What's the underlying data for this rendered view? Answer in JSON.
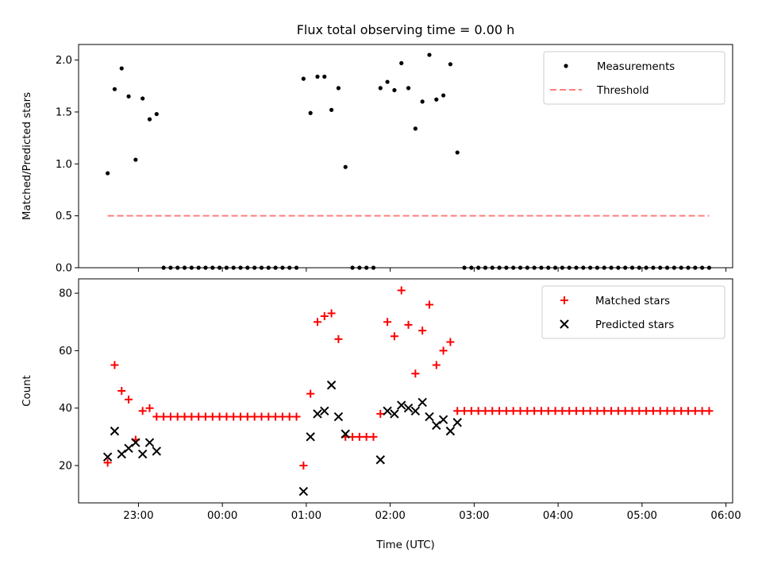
{
  "chart_data": {
    "title": "Flux total observing time = 0.00 h",
    "xlabel": "Time (UTC)",
    "x_unit": "UTC time (day 1 = night of observation, day 2 = after midnight)",
    "x_ticks": [
      "23:00",
      "00:00",
      "01:00",
      "02:00",
      "03:00",
      "04:00",
      "05:00",
      "06:00"
    ],
    "panels": [
      {
        "type": "scatter",
        "ylabel": "Matched/Predicted stars",
        "ylim": [
          0,
          2.15
        ],
        "yticks": [
          "0.0",
          "0.5",
          "1.0",
          "1.5",
          "2.0"
        ],
        "grid": false,
        "legend_position": "top-right",
        "series": [
          {
            "name": "Measurements",
            "marker": "dot",
            "color": "#000000",
            "x": [
              "22:38",
              "22:43",
              "22:48",
              "22:53",
              "22:58",
              "23:03",
              "23:08",
              "23:13",
              "23:18",
              "23:23",
              "23:28",
              "23:33",
              "23:38",
              "23:43",
              "23:48",
              "23:53",
              "23:58",
              "00:03",
              "00:08",
              "00:13",
              "00:18",
              "00:23",
              "00:28",
              "00:33",
              "00:38",
              "00:43",
              "00:48",
              "00:53",
              "00:58",
              "01:03",
              "01:08",
              "01:13",
              "01:18",
              "01:23",
              "01:28",
              "01:33",
              "01:38",
              "01:43",
              "01:48",
              "01:53",
              "01:58",
              "02:03",
              "02:08",
              "02:13",
              "02:18",
              "02:23",
              "02:28",
              "02:33",
              "02:38",
              "02:43",
              "02:48",
              "02:53",
              "02:58",
              "03:03",
              "03:08",
              "03:13",
              "03:18",
              "03:23",
              "03:28",
              "03:33",
              "03:38",
              "03:43",
              "03:48",
              "03:53",
              "03:58",
              "04:03",
              "04:08",
              "04:13",
              "04:18",
              "04:23",
              "04:28",
              "04:33",
              "04:38",
              "04:43",
              "04:48",
              "04:53",
              "04:58",
              "05:03",
              "05:08",
              "05:13",
              "05:18",
              "05:23",
              "05:28",
              "05:33",
              "05:38",
              "05:43",
              "05:48"
            ],
            "y": [
              0.91,
              1.72,
              1.92,
              1.65,
              1.04,
              1.63,
              1.43,
              1.48,
              0,
              0,
              0,
              0,
              0,
              0,
              0,
              0,
              0,
              0,
              0,
              0,
              0,
              0,
              0,
              0,
              0,
              0,
              0,
              0,
              1.82,
              1.49,
              1.84,
              1.84,
              1.52,
              1.73,
              0.97,
              0,
              0,
              0,
              0,
              1.73,
              1.79,
              1.71,
              1.97,
              1.73,
              1.34,
              1.6,
              2.05,
              1.62,
              1.66,
              1.96,
              1.11,
              0,
              0,
              0,
              0,
              0,
              0,
              0,
              0,
              0,
              0,
              0,
              0,
              0,
              0,
              0,
              0,
              0,
              0,
              0,
              0,
              0,
              0,
              0,
              0,
              0,
              0,
              0,
              0,
              0,
              0,
              0,
              0,
              0,
              0,
              0,
              0
            ]
          },
          {
            "name": "Threshold",
            "marker": "dashed-line",
            "color": "#ff7f7f",
            "x": [
              "22:38",
              "05:48"
            ],
            "y": [
              0.5,
              0.5
            ]
          }
        ]
      },
      {
        "type": "scatter",
        "ylabel": "Count",
        "ylim": [
          7,
          85
        ],
        "yticks": [
          "20",
          "40",
          "60",
          "80"
        ],
        "grid": false,
        "legend_position": "top-right",
        "series": [
          {
            "name": "Matched stars",
            "marker": "plus",
            "color": "#ff0000",
            "x": [
              "22:38",
              "22:43",
              "22:48",
              "22:53",
              "22:58",
              "23:03",
              "23:08",
              "23:13",
              "23:18",
              "23:23",
              "23:28",
              "23:33",
              "23:38",
              "23:43",
              "23:48",
              "23:53",
              "23:58",
              "00:03",
              "00:08",
              "00:13",
              "00:18",
              "00:23",
              "00:28",
              "00:33",
              "00:38",
              "00:43",
              "00:48",
              "00:53",
              "00:58",
              "01:03",
              "01:08",
              "01:13",
              "01:18",
              "01:23",
              "01:28",
              "01:33",
              "01:38",
              "01:43",
              "01:48",
              "01:53",
              "01:58",
              "02:03",
              "02:08",
              "02:13",
              "02:18",
              "02:23",
              "02:28",
              "02:33",
              "02:38",
              "02:43",
              "02:48",
              "02:53",
              "02:58",
              "03:03",
              "03:08",
              "03:13",
              "03:18",
              "03:23",
              "03:28",
              "03:33",
              "03:38",
              "03:43",
              "03:48",
              "03:53",
              "03:58",
              "04:03",
              "04:08",
              "04:13",
              "04:18",
              "04:23",
              "04:28",
              "04:33",
              "04:38",
              "04:43",
              "04:48",
              "04:53",
              "04:58",
              "05:03",
              "05:08",
              "05:13",
              "05:18",
              "05:23",
              "05:28",
              "05:33",
              "05:38",
              "05:43",
              "05:48"
            ],
            "y": [
              21,
              55,
              46,
              43,
              29,
              39,
              40,
              37,
              37,
              37,
              37,
              37,
              37,
              37,
              37,
              37,
              37,
              37,
              37,
              37,
              37,
              37,
              37,
              37,
              37,
              37,
              37,
              37,
              20,
              45,
              70,
              72,
              73,
              64,
              30,
              30,
              30,
              30,
              30,
              38,
              70,
              65,
              81,
              69,
              52,
              67,
              76,
              55,
              60,
              63,
              39,
              39,
              39,
              39,
              39,
              39,
              39,
              39,
              39,
              39,
              39,
              39,
              39,
              39,
              39,
              39,
              39,
              39,
              39,
              39,
              39,
              39,
              39,
              39,
              39,
              39,
              39,
              39,
              39,
              39,
              39,
              39,
              39,
              39,
              39,
              39,
              39
            ]
          },
          {
            "name": "Predicted stars",
            "marker": "x",
            "color": "#000000",
            "x": [
              "22:38",
              "22:43",
              "22:48",
              "22:53",
              "22:58",
              "23:03",
              "23:08",
              "23:13",
              "00:58",
              "01:03",
              "01:08",
              "01:13",
              "01:18",
              "01:23",
              "01:28",
              "01:53",
              "01:58",
              "02:03",
              "02:08",
              "02:13",
              "02:18",
              "02:23",
              "02:28",
              "02:33",
              "02:38",
              "02:43",
              "02:48"
            ],
            "y": [
              23,
              32,
              24,
              26,
              28,
              24,
              28,
              25,
              11,
              30,
              38,
              39,
              48,
              37,
              31,
              22,
              39,
              38,
              41,
              40,
              39,
              42,
              37,
              34,
              36,
              32,
              35
            ]
          }
        ]
      }
    ]
  }
}
